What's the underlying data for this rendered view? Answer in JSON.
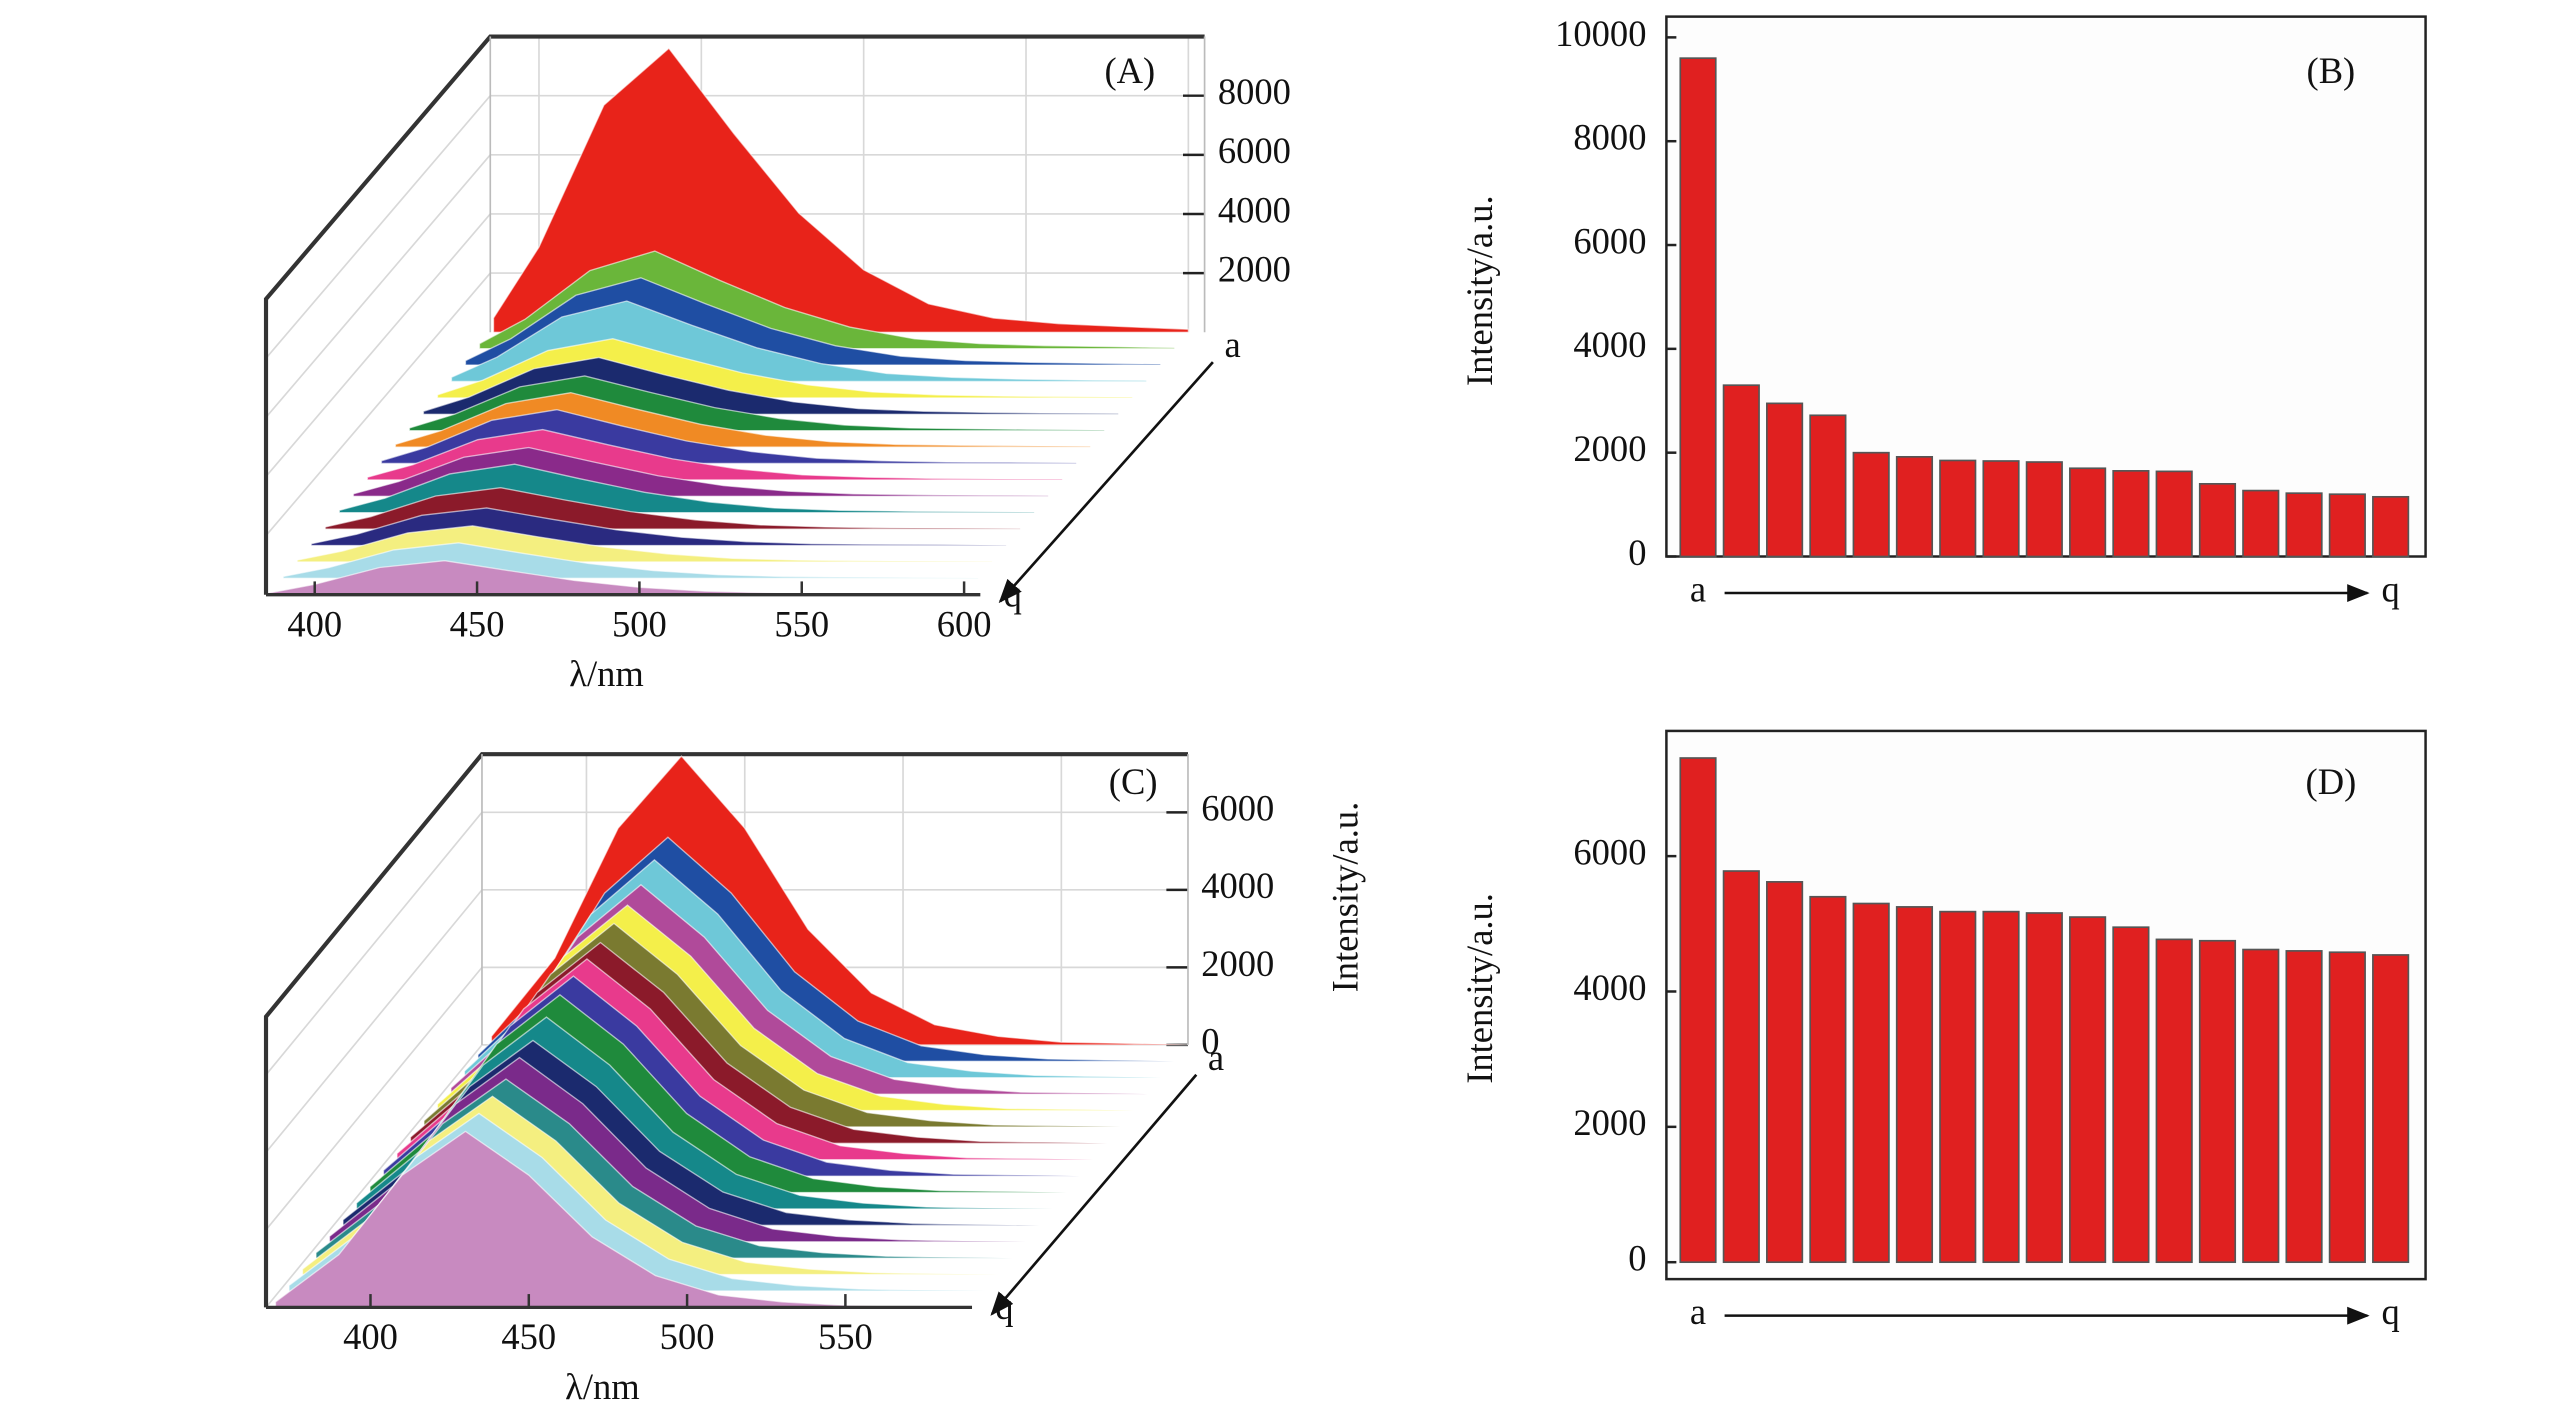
{
  "chart_data": [
    {
      "type": "waterfall",
      "title": "(A)",
      "x_label": "λ/nm",
      "x": [
        386,
        400,
        420,
        440,
        460,
        480,
        500,
        520,
        540,
        560,
        580,
        600
      ],
      "xlim": [
        385,
        605
      ],
      "xticks": [
        400,
        450,
        500,
        550,
        600
      ],
      "zlim": [
        0,
        10000
      ],
      "zticks": [
        2000,
        4000,
        6000,
        8000
      ],
      "series": [
        {
          "name": "a",
          "color": "#e8231a",
          "values": [
            480,
            2880,
            7680,
            9600,
            6720,
            4030,
            2110,
            960,
            480,
            290,
            190,
            100
          ]
        },
        {
          "color": "#6ab63a",
          "values": [
            170,
            990,
            2640,
            3300,
            2310,
            1390,
            730,
            330,
            170,
            100,
            70,
            30
          ]
        },
        {
          "color": "#1f4ea3",
          "values": [
            150,
            890,
            2360,
            2950,
            2070,
            1240,
            650,
            300,
            150,
            90,
            60,
            30
          ]
        },
        {
          "color": "#6ec8d8",
          "values": [
            140,
            820,
            2180,
            2720,
            1900,
            1140,
            600,
            270,
            140,
            80,
            50,
            30
          ]
        },
        {
          "color": "#f4ef4a",
          "values": [
            100,
            600,
            1600,
            2000,
            1400,
            840,
            440,
            200,
            100,
            60,
            40,
            20
          ]
        },
        {
          "color": "#1b2a6e",
          "values": [
            100,
            580,
            1540,
            1920,
            1340,
            810,
            420,
            190,
            100,
            60,
            40,
            20
          ]
        },
        {
          "color": "#1f8a3c",
          "values": [
            90,
            560,
            1480,
            1850,
            1300,
            780,
            410,
            190,
            90,
            60,
            40,
            20
          ]
        },
        {
          "color": "#f08a24",
          "values": [
            90,
            550,
            1470,
            1840,
            1290,
            770,
            400,
            180,
            90,
            60,
            40,
            20
          ]
        },
        {
          "color": "#3a3aa0",
          "values": [
            90,
            550,
            1460,
            1820,
            1270,
            760,
            400,
            180,
            90,
            50,
            40,
            20
          ]
        },
        {
          "color": "#e83a8c",
          "values": [
            90,
            510,
            1360,
            1700,
            1190,
            710,
            370,
            170,
            90,
            50,
            30,
            20
          ]
        },
        {
          "color": "#8a2a8a",
          "values": [
            80,
            500,
            1320,
            1650,
            1160,
            690,
            360,
            170,
            80,
            50,
            30,
            20
          ]
        },
        {
          "color": "#15888a",
          "values": [
            80,
            490,
            1310,
            1640,
            1150,
            690,
            360,
            160,
            80,
            50,
            30,
            20
          ]
        },
        {
          "color": "#8b1a2a",
          "values": [
            70,
            420,
            1120,
            1400,
            980,
            590,
            310,
            140,
            70,
            40,
            30,
            10
          ]
        },
        {
          "color": "#2a2a80",
          "values": [
            60,
            380,
            1020,
            1270,
            890,
            530,
            280,
            130,
            60,
            40,
            30,
            10
          ]
        },
        {
          "color": "#f4ef80",
          "values": [
            60,
            370,
            980,
            1220,
            850,
            510,
            270,
            120,
            60,
            40,
            20,
            10
          ]
        },
        {
          "color": "#a8dce8",
          "values": [
            60,
            360,
            960,
            1200,
            840,
            500,
            260,
            120,
            60,
            40,
            20,
            10
          ]
        },
        {
          "name": "q",
          "color": "#c88ac0",
          "values": [
            60,
            350,
            920,
            1150,
            810,
            480,
            250,
            120,
            60,
            30,
            20,
            10
          ]
        }
      ]
    },
    {
      "type": "bar",
      "title": "(B)",
      "y_label": "Intensity/a.u.",
      "color": "#e02020",
      "categories": [
        "a",
        null,
        null,
        null,
        null,
        null,
        null,
        null,
        null,
        null,
        null,
        null,
        null,
        null,
        null,
        null,
        "q"
      ],
      "values": [
        9600,
        3300,
        2950,
        2720,
        2000,
        1920,
        1850,
        1840,
        1820,
        1700,
        1650,
        1640,
        1400,
        1270,
        1220,
        1200,
        1150
      ],
      "ylim": [
        0,
        10400
      ],
      "yticks": [
        0,
        2000,
        4000,
        6000,
        8000,
        10000
      ]
    },
    {
      "type": "waterfall",
      "title": "(C)",
      "x_label": "λ/nm",
      "z_label": "Intensity/a.u.",
      "x": [
        370,
        390,
        410,
        430,
        450,
        470,
        490,
        510,
        530,
        550,
        570,
        590
      ],
      "xlim": [
        367,
        590
      ],
      "xticks": [
        400,
        450,
        500,
        550
      ],
      "zlim": [
        0,
        7500
      ],
      "zticks": [
        0,
        2000,
        4000,
        6000
      ],
      "series": [
        {
          "name": "a",
          "color": "#e8231a",
          "values": [
            220,
            2240,
            5590,
            7450,
            5590,
            2980,
            1340,
            520,
            220,
            70,
            40,
            0
          ]
        },
        {
          "color": "#1f4ea3",
          "values": [
            170,
            1730,
            4340,
            5780,
            4340,
            2310,
            1040,
            400,
            170,
            60,
            30,
            0
          ]
        },
        {
          "color": "#6ec8d8",
          "values": [
            170,
            1690,
            4220,
            5620,
            4220,
            2250,
            1010,
            390,
            170,
            60,
            30,
            0
          ]
        },
        {
          "color": "#b04a9a",
          "values": [
            160,
            1620,
            4050,
            5400,
            4050,
            2160,
            970,
            380,
            160,
            50,
            30,
            0
          ]
        },
        {
          "color": "#f4ef4a",
          "values": [
            160,
            1590,
            3980,
            5300,
            3980,
            2120,
            950,
            370,
            160,
            50,
            30,
            0
          ]
        },
        {
          "color": "#7a7a30",
          "values": [
            160,
            1580,
            3940,
            5250,
            3940,
            2100,
            950,
            370,
            160,
            50,
            30,
            0
          ]
        },
        {
          "color": "#8b1a2a",
          "values": [
            160,
            1550,
            3890,
            5180,
            3890,
            2070,
            930,
            360,
            160,
            50,
            30,
            0
          ]
        },
        {
          "color": "#e83a8c",
          "values": [
            160,
            1550,
            3890,
            5180,
            3890,
            2070,
            930,
            360,
            160,
            50,
            30,
            0
          ]
        },
        {
          "color": "#3a3aa0",
          "values": [
            150,
            1550,
            3870,
            5160,
            3870,
            2060,
            930,
            360,
            150,
            50,
            30,
            0
          ]
        },
        {
          "color": "#1f8a3c",
          "values": [
            150,
            1530,
            3830,
            5100,
            3830,
            2040,
            920,
            360,
            150,
            50,
            30,
            0
          ]
        },
        {
          "color": "#15888a",
          "values": [
            150,
            1490,
            3710,
            4950,
            3710,
            1980,
            890,
            350,
            150,
            50,
            20,
            0
          ]
        },
        {
          "color": "#1b2a6e",
          "values": [
            140,
            1430,
            3580,
            4770,
            3580,
            1910,
            860,
            330,
            140,
            50,
            20,
            0
          ]
        },
        {
          "color": "#7a2a8a",
          "values": [
            140,
            1430,
            3560,
            4750,
            3560,
            1900,
            860,
            330,
            140,
            50,
            20,
            0
          ]
        },
        {
          "color": "#2a8a8a",
          "values": [
            140,
            1390,
            3470,
            4620,
            3470,
            1850,
            830,
            320,
            140,
            50,
            20,
            0
          ]
        },
        {
          "color": "#f4ef80",
          "values": [
            140,
            1380,
            3450,
            4600,
            3450,
            1840,
            830,
            320,
            140,
            50,
            20,
            0
          ]
        },
        {
          "color": "#a8dce8",
          "values": [
            140,
            1370,
            3440,
            4580,
            3440,
            1830,
            820,
            320,
            140,
            50,
            20,
            0
          ]
        },
        {
          "name": "q",
          "color": "#c88ac0",
          "values": [
            140,
            1360,
            3410,
            4540,
            3410,
            1820,
            820,
            320,
            140,
            50,
            20,
            0
          ]
        }
      ]
    },
    {
      "type": "bar",
      "title": "(D)",
      "y_label": "Intensity/a.u.",
      "color": "#e02020",
      "categories": [
        "a",
        null,
        null,
        null,
        null,
        null,
        null,
        null,
        null,
        null,
        null,
        null,
        null,
        null,
        null,
        null,
        "q"
      ],
      "values": [
        7450,
        5780,
        5620,
        5400,
        5300,
        5250,
        5180,
        5180,
        5160,
        5100,
        4950,
        4770,
        4750,
        4620,
        4600,
        4580,
        4540
      ],
      "ylim": [
        -250,
        7850
      ],
      "yticks": [
        0,
        2000,
        4000,
        6000
      ]
    }
  ]
}
